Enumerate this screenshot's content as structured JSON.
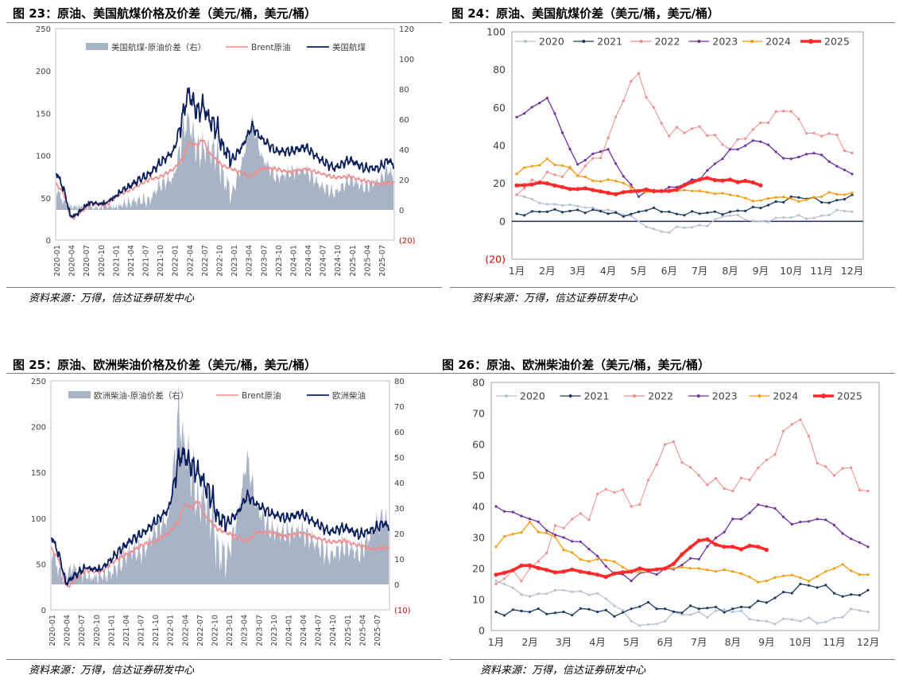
{
  "panels": [
    {
      "id": "p23",
      "title": "图 23：原油、美国航煤价格及价差（美元/桶，美元/桶）",
      "source": "资料来源：万得，信达证券研发中心",
      "chart_data": {
        "type": "line",
        "legend": [
          "美国航煤-原油价差（右）",
          "Brent原油",
          "美国航煤"
        ],
        "colors": {
          "spread": "#a9b3c6",
          "brent": "#f28b8b",
          "product": "#0b1f5c"
        },
        "y_left": {
          "min": 0,
          "max": 250,
          "ticks": [
            "0",
            "50",
            "100",
            "150",
            "200",
            "250"
          ]
        },
        "y_right": {
          "min": -20,
          "max": 120,
          "ticks": [
            "(20)",
            "0",
            "20",
            "40",
            "60",
            "80",
            "100",
            "120"
          ]
        },
        "x_ticks": [
          "2020-01",
          "2020-04",
          "2020-07",
          "2020-10",
          "2021-01",
          "2021-04",
          "2021-07",
          "2021-10",
          "2022-01",
          "2022-04",
          "2022-07",
          "2022-10",
          "2023-01",
          "2023-04",
          "2023-07",
          "2023-10",
          "2024-01",
          "2024-04",
          "2024-07",
          "2024-10",
          "2025-01",
          "2025-04",
          "2025-07"
        ],
        "keypoints": {
          "t": [
            0,
            1.5,
            3,
            4,
            7,
            10,
            13,
            16,
            19,
            21,
            24,
            26,
            27,
            29,
            30,
            31,
            33,
            34,
            36,
            38,
            40,
            42,
            45,
            48,
            51,
            54,
            57,
            60,
            63,
            66,
            68,
            69
          ],
          "brent": [
            66,
            55,
            25,
            28,
            43,
            41,
            54,
            62,
            72,
            74,
            84,
            97,
            115,
            112,
            120,
            105,
            93,
            88,
            84,
            79,
            75,
            85,
            84,
            80,
            84,
            79,
            74,
            75,
            70,
            66,
            68,
            67
          ],
          "product": [
            80,
            60,
            22,
            30,
            41,
            40,
            55,
            68,
            78,
            90,
            105,
            150,
            175,
            150,
            160,
            145,
            130,
            110,
            95,
            110,
            135,
            120,
            105,
            105,
            110,
            95,
            85,
            95,
            85,
            85,
            95,
            88
          ]
        }
      }
    },
    {
      "id": "p24",
      "title": "图 24：原油、美国航煤价差（美元/桶，美元/桶）",
      "source": "资料来源：万得，信达证券研发中心",
      "chart_data": {
        "type": "line",
        "x_labels": [
          "1月",
          "2月",
          "3月",
          "4月",
          "5月",
          "6月",
          "7月",
          "8月",
          "9月",
          "10月",
          "11月",
          "12月"
        ],
        "y": {
          "min": -20,
          "max": 100,
          "ticks": [
            "(20)",
            "0",
            "20",
            "40",
            "60",
            "80",
            "100"
          ]
        },
        "series": [
          {
            "name": "2020",
            "color": "#b8c2d2",
            "values": [
              14,
              9,
              8,
              6,
              0,
              -6,
              -2,
              3,
              0,
              2,
              3,
              5
            ]
          },
          {
            "name": "2021",
            "color": "#1f3a60",
            "values": [
              4,
              5,
              6,
              4,
              5,
              5,
              4,
              5,
              7,
              13,
              10,
              14
            ]
          },
          {
            "name": "2022",
            "color": "#f28b8b",
            "values": [
              14,
              26,
              24,
              44,
              78,
              45,
              50,
              38,
              52,
              58,
              45,
              36
            ]
          },
          {
            "name": "2023",
            "color": "#7030a0",
            "values": [
              55,
              65,
              30,
              38,
              13,
              18,
              22,
              38,
              42,
              33,
              35,
              25
            ]
          },
          {
            "name": "2024",
            "color": "#f59a0b",
            "values": [
              25,
              33,
              24,
              22,
              16,
              16,
              16,
              14,
              11,
              12,
              13,
              15
            ]
          },
          {
            "name": "2025",
            "color": "#ff2a2a",
            "values": [
              19,
              20,
              17,
              15,
              16,
              16,
              22,
              22,
              19
            ]
          }
        ]
      }
    },
    {
      "id": "p25",
      "title": "图 25：原油、欧洲柴油价格及价差（美元/桶，美元/桶）",
      "source": "资料来源：万得，信达证券研发中心",
      "chart_data": {
        "type": "line",
        "legend": [
          "欧洲柴油-原油价差（右）",
          "Brent原油",
          "欧洲柴油"
        ],
        "colors": {
          "spread": "#a9b3c6",
          "brent": "#f28b8b",
          "product": "#0b1f5c"
        },
        "y_left": {
          "min": 0,
          "max": 250,
          "ticks": [
            "0",
            "50",
            "100",
            "150",
            "200",
            "250"
          ]
        },
        "y_right": {
          "min": -10,
          "max": 80,
          "ticks": [
            "(10)",
            "0",
            "10",
            "20",
            "30",
            "40",
            "50",
            "60",
            "70",
            "80"
          ]
        },
        "x_ticks": [
          "2020-01",
          "2020-04",
          "2020-07",
          "2020-10",
          "2021-01",
          "2021-04",
          "2021-07",
          "2021-10",
          "2022-01",
          "2022-04",
          "2022-07",
          "2022-10",
          "2023-01",
          "2023-04",
          "2023-07",
          "2023-10",
          "2024-01",
          "2024-04",
          "2024-07",
          "2024-10",
          "2025-01",
          "2025-04",
          "2025-07"
        ],
        "keypoints": {
          "t": [
            0,
            1.5,
            3,
            4,
            7,
            10,
            13,
            16,
            19,
            21,
            24,
            26,
            27,
            29,
            30,
            31,
            33,
            34,
            36,
            38,
            40,
            42,
            45,
            48,
            51,
            54,
            57,
            60,
            63,
            66,
            68,
            69
          ],
          "brent": [
            66,
            55,
            25,
            28,
            43,
            41,
            54,
            62,
            72,
            74,
            84,
            97,
            115,
            112,
            120,
            105,
            93,
            88,
            84,
            79,
            75,
            85,
            84,
            80,
            84,
            79,
            74,
            75,
            70,
            66,
            68,
            67
          ],
          "product": [
            80,
            60,
            25,
            35,
            45,
            42,
            60,
            75,
            85,
            95,
            110,
            165,
            170,
            155,
            150,
            140,
            120,
            100,
            95,
            105,
            125,
            115,
            105,
            100,
            105,
            95,
            85,
            90,
            82,
            88,
            95,
            90
          ]
        }
      }
    },
    {
      "id": "p26",
      "title": "图 26：原油、欧洲柴油价差（美元/桶，美元/桶）",
      "source": "资料来源：万得，信达证券研发中心",
      "chart_data": {
        "type": "line",
        "x_labels": [
          "1月",
          "2月",
          "3月",
          "4月",
          "5月",
          "6月",
          "7月",
          "8月",
          "9月",
          "10月",
          "11月",
          "12月"
        ],
        "y": {
          "min": 0,
          "max": 80,
          "ticks": [
            "0",
            "10",
            "20",
            "30",
            "40",
            "50",
            "60",
            "70",
            "80"
          ]
        },
        "series": [
          {
            "name": "2020",
            "color": "#b8c2d2",
            "values": [
              16,
              11,
              13,
              12,
              3,
              3,
              6,
              6,
              3,
              3,
              4,
              6
            ]
          },
          {
            "name": "2021",
            "color": "#1f3a60",
            "values": [
              6,
              6,
              6,
              6,
              7,
              7,
              7,
              7,
              9,
              15,
              12,
              13
            ]
          },
          {
            "name": "2022",
            "color": "#f28b8b",
            "values": [
              15,
              20,
              33,
              44,
              40,
              60,
              50,
              45,
              55,
              68,
              50,
              45
            ]
          },
          {
            "name": "2023",
            "color": "#7030a0",
            "values": [
              40,
              36,
              30,
              24,
              16,
              20,
              23,
              36,
              40,
              35,
              34,
              27
            ]
          },
          {
            "name": "2024",
            "color": "#f59a0b",
            "values": [
              27,
              35,
              26,
              23,
              19,
              20,
              20,
              19,
              16,
              17,
              20,
              18
            ]
          },
          {
            "name": "2025",
            "color": "#ff2a2a",
            "values": [
              18,
              21,
              19,
              18,
              19,
              20,
              29,
              27,
              26
            ]
          }
        ]
      }
    }
  ]
}
